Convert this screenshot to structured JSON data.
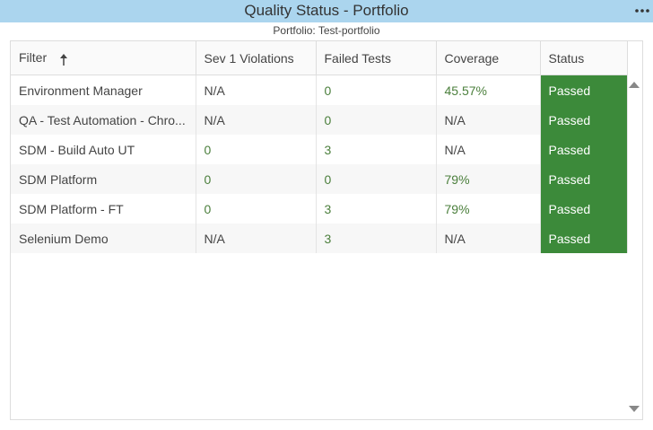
{
  "header": {
    "title": "Quality Status - Portfolio",
    "subtitle": "Portfolio: Test-portfolio"
  },
  "table": {
    "columns": [
      "Filter",
      "Sev 1 Violations",
      "Failed Tests",
      "Coverage",
      "Status"
    ],
    "rows": [
      [
        "Environment Manager",
        "N/A",
        "0",
        "45.57%",
        "Passed"
      ],
      [
        "QA - Test Automation - Chro...",
        "N/A",
        "0",
        "N/A",
        "Passed"
      ],
      [
        "SDM - Build Auto UT",
        "0",
        "3",
        "N/A",
        "Passed"
      ],
      [
        "SDM Platform",
        "0",
        "0",
        "79%",
        "Passed"
      ],
      [
        "SDM Platform - FT",
        "0",
        "3",
        "79%",
        "Passed"
      ],
      [
        "Selenium Demo",
        "N/A",
        "3",
        "N/A",
        "Passed"
      ]
    ]
  }
}
